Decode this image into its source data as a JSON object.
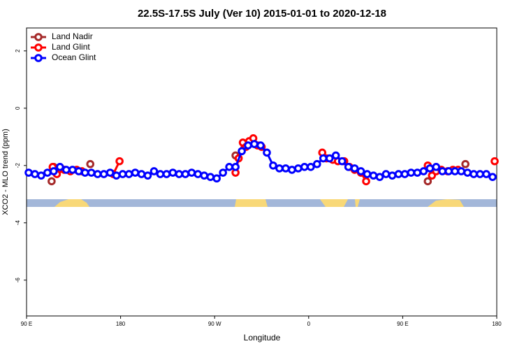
{
  "chart_data": {
    "type": "line",
    "title": "22.5S-17.5S July (Ver 10)   2015-01-01 to 2020-12-18",
    "xlabel": "Longitude",
    "ylabel": "XCO2 - MLO trend (ppm)",
    "xlim": [
      90,
      540
    ],
    "ylim": [
      -7.25,
      2.8
    ],
    "xticks": [
      {
        "value": 90,
        "label": "90 E"
      },
      {
        "value": 180,
        "label": "180"
      },
      {
        "value": 270,
        "label": "90 W"
      },
      {
        "value": 360,
        "label": "0"
      },
      {
        "value": 450,
        "label": "90 E"
      },
      {
        "value": 540,
        "label": "180"
      }
    ],
    "yticks": [
      2,
      0,
      -2,
      -4,
      -6
    ],
    "legend": "top-left",
    "series": [
      {
        "name": "Land Nadir",
        "color": "#a52a2a",
        "x": [
          114,
          null,
          116,
          null,
          151,
          null,
          290,
          null,
          474,
          null,
          510
        ],
        "values": [
          -2.55,
          null,
          -2.05,
          null,
          -1.95,
          null,
          -1.65,
          null,
          -2.55,
          null,
          -1.95
        ]
      },
      {
        "name": "Land Glint",
        "color": "#ff0000",
        "x": [
          115,
          119,
          126,
          132,
          138,
          143,
          null,
          173,
          179,
          null,
          290,
          293,
          297,
          300,
          303,
          307,
          311,
          315,
          null,
          373,
          377,
          383,
          388,
          394,
          399,
          404,
          410,
          415,
          null,
          474,
          478,
          482,
          487,
          493,
          498,
          503,
          null,
          538
        ],
        "values": [
          -2.05,
          -2.3,
          -2.15,
          -2.2,
          -2.15,
          -2.2,
          null,
          -2.3,
          -1.85,
          null,
          -2.25,
          -1.75,
          -1.2,
          -1.35,
          -1.15,
          -1.05,
          -1.3,
          -1.35,
          null,
          -1.55,
          -1.75,
          -1.8,
          -1.85,
          -1.85,
          -2.05,
          -2.15,
          -2.25,
          -2.55,
          null,
          -2.0,
          -2.35,
          -2.2,
          -2.15,
          -2.2,
          -2.15,
          -2.15,
          null,
          -1.85
        ]
      },
      {
        "name": "Ocean Glint",
        "color": "#0000ff",
        "x": [
          92,
          98,
          104,
          110,
          116,
          122,
          128,
          134,
          140,
          146,
          152,
          158,
          164,
          170,
          176,
          182,
          188,
          194,
          200,
          206,
          212,
          218,
          224,
          230,
          236,
          242,
          248,
          254,
          260,
          266,
          272,
          278,
          284,
          290,
          296,
          302,
          308,
          314,
          320,
          326,
          332,
          338,
          344,
          350,
          356,
          362,
          368,
          374,
          380,
          386,
          392,
          398,
          404,
          410,
          416,
          422,
          428,
          434,
          440,
          446,
          452,
          458,
          464,
          470,
          476,
          482,
          488,
          494,
          500,
          506,
          512,
          518,
          524,
          530,
          536
        ],
        "values": [
          -2.25,
          -2.3,
          -2.35,
          -2.25,
          -2.2,
          -2.05,
          -2.15,
          -2.15,
          -2.2,
          -2.25,
          -2.25,
          -2.3,
          -2.3,
          -2.25,
          -2.35,
          -2.3,
          -2.3,
          -2.25,
          -2.3,
          -2.35,
          -2.2,
          -2.3,
          -2.3,
          -2.25,
          -2.3,
          -2.3,
          -2.25,
          -2.3,
          -2.35,
          -2.4,
          -2.45,
          -2.25,
          -2.05,
          -2.05,
          -1.5,
          -1.3,
          -1.25,
          -1.3,
          -1.55,
          -2.0,
          -2.1,
          -2.1,
          -2.15,
          -2.1,
          -2.05,
          -2.05,
          -1.95,
          -1.75,
          -1.75,
          -1.65,
          -1.85,
          -2.05,
          -2.1,
          -2.2,
          -2.3,
          -2.35,
          -2.4,
          -2.3,
          -2.35,
          -2.3,
          -2.3,
          -2.25,
          -2.25,
          -2.2,
          -2.1,
          -2.05,
          -2.2,
          -2.2,
          -2.2,
          -2.2,
          -2.25,
          -2.3,
          -2.3,
          -2.3,
          -2.4
        ]
      }
    ]
  }
}
